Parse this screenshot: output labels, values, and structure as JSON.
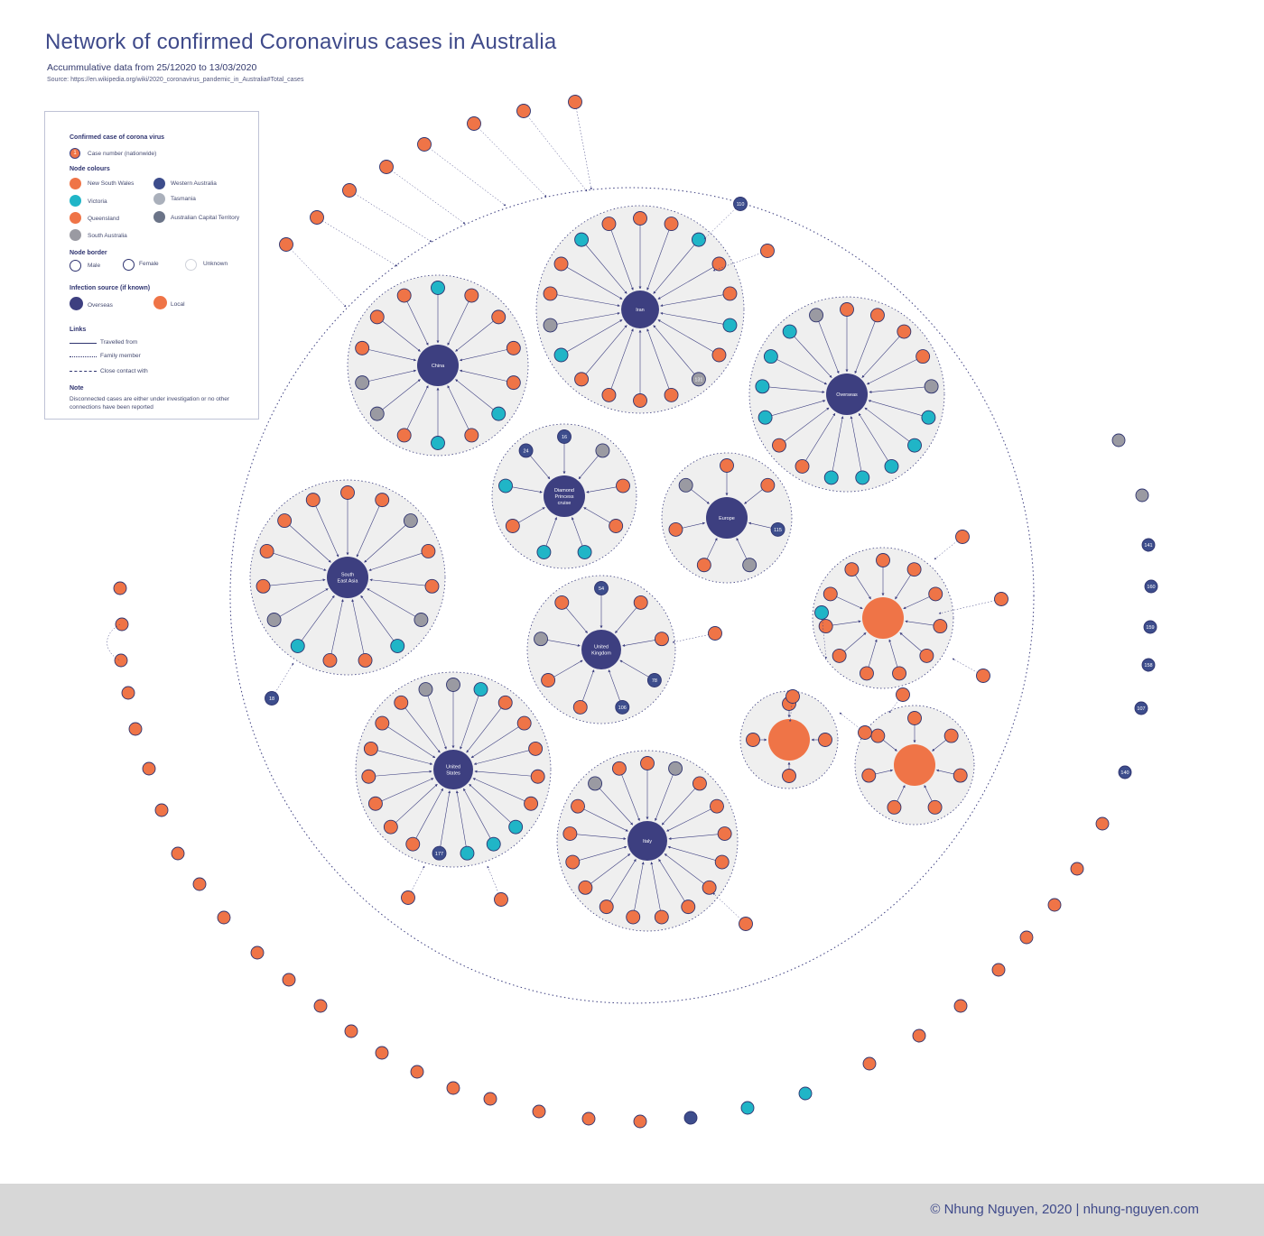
{
  "title": "Network of confirmed Coronavirus cases in Australia",
  "subtitle": "Accummulative data from 25/12020 to 13/03/2020",
  "source": "Source: https://en.wikipedia.org/wiki/2020_coronavirus_pandemic_in_Australia#Total_cases",
  "footer": "© Nhung Nguyen, 2020 | nhung-nguyen.com",
  "colors": {
    "nsw": "#ef7447",
    "vic": "#20b5c7",
    "qld": "#ef7447",
    "sa": "#9a9aa2",
    "wa": "#3d4d8c",
    "tas": "#aab0bb",
    "act": "#6b7488",
    "overseas": "#3d3f80",
    "local": "#ef7447",
    "cluster_bg": "#efefef"
  },
  "legend": {
    "h_confirmed": "Confirmed case of corona virus",
    "case_number_label": "Case number (nationwide)",
    "case_sample": "1",
    "h_colours": "Node colours",
    "nsw": "New South Wales",
    "wa": "Western Australia",
    "vic": "Victoria",
    "tas": "Tasmania",
    "qld": "Queensland",
    "act": "Australian Capital Territory",
    "sa": "South Australia",
    "h_border": "Node border",
    "male": "Male",
    "female": "Female",
    "unknown": "Unknown",
    "h_source": "Infection source (if known)",
    "overseas": "Overseas",
    "local": "Local",
    "h_links": "Links",
    "travelled": "Travelled from",
    "family": "Family member",
    "close": "Close contact with",
    "h_note": "Note",
    "note": "Disconnected cases are either under investigation or no other connections have been reported"
  },
  "clusters": [
    {
      "hub": "China",
      "hub_type": "overseas",
      "nodes": [
        {
          "label": "",
          "state": "vic"
        },
        {
          "label": "",
          "state": "nsw"
        },
        {
          "label": "",
          "state": "nsw"
        },
        {
          "label": "",
          "state": "nsw"
        },
        {
          "label": "",
          "state": "nsw"
        },
        {
          "label": "",
          "state": "vic"
        },
        {
          "label": "",
          "state": "nsw"
        },
        {
          "label": "",
          "state": "vic"
        },
        {
          "label": "",
          "state": "nsw"
        },
        {
          "label": "",
          "state": "sa"
        },
        {
          "label": "",
          "state": "sa"
        },
        {
          "label": "",
          "state": "nsw"
        },
        {
          "label": "",
          "state": "nsw"
        },
        {
          "label": "",
          "state": "nsw"
        }
      ]
    },
    {
      "hub": "Iran",
      "hub_type": "overseas",
      "nodes": [
        {
          "label": "",
          "state": "nsw"
        },
        {
          "label": "",
          "state": "nsw"
        },
        {
          "label": "",
          "state": "vic"
        },
        {
          "label": "",
          "state": "nsw"
        },
        {
          "label": "",
          "state": "nsw"
        },
        {
          "label": "",
          "state": "vic"
        },
        {
          "label": "",
          "state": "nsw"
        },
        {
          "label": "131",
          "state": "sa"
        },
        {
          "label": "",
          "state": "nsw"
        },
        {
          "label": "",
          "state": "nsw"
        },
        {
          "label": "",
          "state": "nsw"
        },
        {
          "label": "",
          "state": "nsw"
        },
        {
          "label": "",
          "state": "vic"
        },
        {
          "label": "",
          "state": "sa"
        },
        {
          "label": "",
          "state": "nsw"
        },
        {
          "label": "",
          "state": "nsw"
        },
        {
          "label": "",
          "state": "vic"
        },
        {
          "label": "",
          "state": "nsw"
        }
      ]
    },
    {
      "hub": "Overseas",
      "hub_type": "overseas",
      "nodes": [
        {
          "label": "",
          "state": "nsw"
        },
        {
          "label": "",
          "state": "nsw"
        },
        {
          "label": "",
          "state": "nsw"
        },
        {
          "label": "",
          "state": "nsw"
        },
        {
          "label": "",
          "state": "sa"
        },
        {
          "label": "",
          "state": "vic"
        },
        {
          "label": "",
          "state": "vic"
        },
        {
          "label": "",
          "state": "vic"
        },
        {
          "label": "",
          "state": "vic"
        },
        {
          "label": "",
          "state": "vic"
        },
        {
          "label": "",
          "state": "nsw"
        },
        {
          "label": "",
          "state": "nsw"
        },
        {
          "label": "",
          "state": "vic"
        },
        {
          "label": "",
          "state": "vic"
        },
        {
          "label": "",
          "state": "vic"
        },
        {
          "label": "",
          "state": "vic"
        },
        {
          "label": "",
          "state": "sa"
        }
      ]
    },
    {
      "hub": "Diamond Princess cruise",
      "hub_type": "overseas",
      "nodes": [
        {
          "label": "16",
          "state": "wa"
        },
        {
          "label": "",
          "state": "sa"
        },
        {
          "label": "",
          "state": "nsw"
        },
        {
          "label": "",
          "state": "nsw"
        },
        {
          "label": "",
          "state": "vic"
        },
        {
          "label": "",
          "state": "vic"
        },
        {
          "label": "",
          "state": "nsw"
        },
        {
          "label": "",
          "state": "vic"
        },
        {
          "label": "24",
          "state": "wa"
        }
      ]
    },
    {
      "hub": "Europe",
      "hub_type": "overseas",
      "nodes": [
        {
          "label": "",
          "state": "nsw"
        },
        {
          "label": "",
          "state": "nsw"
        },
        {
          "label": "115",
          "state": "wa"
        },
        {
          "label": "",
          "state": "sa"
        },
        {
          "label": "",
          "state": "nsw"
        },
        {
          "label": "",
          "state": "nsw"
        },
        {
          "label": "",
          "state": "sa"
        }
      ]
    },
    {
      "hub": "South East Asia",
      "hub_type": "overseas",
      "nodes": [
        {
          "label": "",
          "state": "nsw"
        },
        {
          "label": "",
          "state": "nsw"
        },
        {
          "label": "",
          "state": "sa"
        },
        {
          "label": "",
          "state": "nsw"
        },
        {
          "label": "",
          "state": "nsw"
        },
        {
          "label": "",
          "state": "sa"
        },
        {
          "label": "",
          "state": "vic"
        },
        {
          "label": "",
          "state": "nsw"
        },
        {
          "label": "",
          "state": "nsw"
        },
        {
          "label": "",
          "state": "vic"
        },
        {
          "label": "",
          "state": "sa"
        },
        {
          "label": "",
          "state": "nsw"
        },
        {
          "label": "",
          "state": "nsw"
        },
        {
          "label": "",
          "state": "nsw"
        },
        {
          "label": "",
          "state": "nsw"
        }
      ]
    },
    {
      "hub": "United Kingdom",
      "hub_type": "overseas",
      "nodes": [
        {
          "label": "54",
          "state": "wa"
        },
        {
          "label": "",
          "state": "nsw"
        },
        {
          "label": "",
          "state": "nsw"
        },
        {
          "label": "78",
          "state": "wa"
        },
        {
          "label": "106",
          "state": "wa"
        },
        {
          "label": "",
          "state": "nsw"
        },
        {
          "label": "",
          "state": "nsw"
        },
        {
          "label": "",
          "state": "sa"
        },
        {
          "label": "",
          "state": "nsw"
        }
      ]
    },
    {
      "hub": "United States",
      "hub_type": "overseas",
      "nodes": [
        {
          "label": "",
          "state": "sa"
        },
        {
          "label": "",
          "state": "vic"
        },
        {
          "label": "",
          "state": "nsw"
        },
        {
          "label": "",
          "state": "nsw"
        },
        {
          "label": "",
          "state": "nsw"
        },
        {
          "label": "",
          "state": "nsw"
        },
        {
          "label": "",
          "state": "nsw"
        },
        {
          "label": "",
          "state": "vic"
        },
        {
          "label": "",
          "state": "vic"
        },
        {
          "label": "",
          "state": "vic"
        },
        {
          "label": "177",
          "state": "wa"
        },
        {
          "label": "",
          "state": "nsw"
        },
        {
          "label": "",
          "state": "nsw"
        },
        {
          "label": "",
          "state": "nsw"
        },
        {
          "label": "",
          "state": "nsw"
        },
        {
          "label": "",
          "state": "nsw"
        },
        {
          "label": "",
          "state": "nsw"
        },
        {
          "label": "",
          "state": "nsw"
        },
        {
          "label": "",
          "state": "sa"
        }
      ]
    },
    {
      "hub": "Italy",
      "hub_type": "overseas",
      "nodes": [
        {
          "label": "",
          "state": "nsw"
        },
        {
          "label": "",
          "state": "sa"
        },
        {
          "label": "",
          "state": "nsw"
        },
        {
          "label": "",
          "state": "nsw"
        },
        {
          "label": "",
          "state": "nsw"
        },
        {
          "label": "",
          "state": "nsw"
        },
        {
          "label": "",
          "state": "nsw"
        },
        {
          "label": "",
          "state": "nsw"
        },
        {
          "label": "",
          "state": "nsw"
        },
        {
          "label": "",
          "state": "nsw"
        },
        {
          "label": "",
          "state": "nsw"
        },
        {
          "label": "",
          "state": "nsw"
        },
        {
          "label": "",
          "state": "nsw"
        },
        {
          "label": "",
          "state": "nsw"
        },
        {
          "label": "",
          "state": "nsw"
        },
        {
          "label": "",
          "state": "sa"
        },
        {
          "label": "",
          "state": "nsw"
        }
      ]
    },
    {
      "hub": "",
      "hub_type": "local",
      "nodes": [
        {
          "label": "",
          "state": "nsw"
        },
        {
          "label": "",
          "state": "nsw"
        },
        {
          "label": "",
          "state": "nsw"
        },
        {
          "label": "",
          "state": "nsw"
        },
        {
          "label": "",
          "state": "nsw"
        },
        {
          "label": "",
          "state": "nsw"
        },
        {
          "label": "",
          "state": "nsw"
        },
        {
          "label": "",
          "state": "nsw"
        },
        {
          "label": "",
          "state": "nsw"
        },
        {
          "label": "",
          "state": "nsw"
        },
        {
          "label": "",
          "state": "nsw"
        }
      ]
    },
    {
      "hub": "",
      "hub_type": "local",
      "nodes": [
        {
          "label": "",
          "state": "nsw"
        },
        {
          "label": "",
          "state": "nsw"
        },
        {
          "label": "",
          "state": "nsw"
        },
        {
          "label": "",
          "state": "nsw"
        }
      ]
    },
    {
      "hub": "",
      "hub_type": "local",
      "nodes": [
        {
          "label": "",
          "state": "nsw"
        },
        {
          "label": "",
          "state": "nsw"
        },
        {
          "label": "",
          "state": "nsw"
        },
        {
          "label": "",
          "state": "nsw"
        },
        {
          "label": "",
          "state": "nsw"
        },
        {
          "label": "",
          "state": "nsw"
        },
        {
          "label": "",
          "state": "nsw"
        }
      ]
    }
  ],
  "outer_nodes": [
    {
      "label": "",
      "state": "nsw"
    },
    {
      "label": "",
      "state": "nsw"
    },
    {
      "label": "",
      "state": "nsw"
    },
    {
      "label": "",
      "state": "nsw"
    },
    {
      "label": "",
      "state": "nsw"
    },
    {
      "label": "",
      "state": "nsw"
    },
    {
      "label": "",
      "state": "nsw"
    },
    {
      "label": "",
      "state": "nsw"
    },
    {
      "label": "",
      "state": "nsw"
    },
    {
      "label": "",
      "state": "nsw"
    },
    {
      "label": "110",
      "state": "wa"
    },
    {
      "label": "",
      "state": "nsw"
    },
    {
      "label": "18",
      "state": "wa"
    },
    {
      "label": "",
      "state": "nsw"
    },
    {
      "label": "",
      "state": "nsw"
    },
    {
      "label": "",
      "state": "nsw"
    },
    {
      "label": "",
      "state": "nsw"
    },
    {
      "label": "",
      "state": "nsw"
    },
    {
      "label": "",
      "state": "vic"
    },
    {
      "label": "",
      "state": "nsw"
    },
    {
      "label": "",
      "state": "nsw"
    },
    {
      "label": "",
      "state": "nsw"
    }
  ],
  "disconnected": [
    {
      "label": "",
      "state": "sa"
    },
    {
      "label": "",
      "state": "sa"
    },
    {
      "label": "141",
      "state": "wa"
    },
    {
      "label": "160",
      "state": "wa"
    },
    {
      "label": "159",
      "state": "wa"
    },
    {
      "label": "158",
      "state": "wa"
    },
    {
      "label": "107",
      "state": "wa"
    },
    {
      "label": "140",
      "state": "wa"
    },
    {
      "label": "",
      "state": "nsw"
    },
    {
      "label": "",
      "state": "nsw"
    },
    {
      "label": "",
      "state": "nsw"
    },
    {
      "label": "",
      "state": "nsw"
    },
    {
      "label": "",
      "state": "nsw"
    },
    {
      "label": "",
      "state": "nsw"
    },
    {
      "label": "",
      "state": "nsw"
    },
    {
      "label": "",
      "state": "nsw"
    },
    {
      "label": "",
      "state": "vic"
    },
    {
      "label": "",
      "state": "vic"
    },
    {
      "label": "",
      "state": "wa"
    },
    {
      "label": "",
      "state": "nsw"
    },
    {
      "label": "",
      "state": "nsw"
    },
    {
      "label": "",
      "state": "nsw"
    },
    {
      "label": "",
      "state": "nsw"
    },
    {
      "label": "",
      "state": "nsw"
    },
    {
      "label": "",
      "state": "nsw"
    },
    {
      "label": "",
      "state": "nsw"
    },
    {
      "label": "",
      "state": "nsw"
    },
    {
      "label": "",
      "state": "nsw"
    },
    {
      "label": "",
      "state": "nsw"
    },
    {
      "label": "",
      "state": "nsw"
    },
    {
      "label": "",
      "state": "nsw"
    },
    {
      "label": "",
      "state": "nsw"
    },
    {
      "label": "",
      "state": "nsw"
    },
    {
      "label": "",
      "state": "nsw"
    },
    {
      "label": "",
      "state": "nsw"
    },
    {
      "label": "",
      "state": "nsw"
    }
  ]
}
